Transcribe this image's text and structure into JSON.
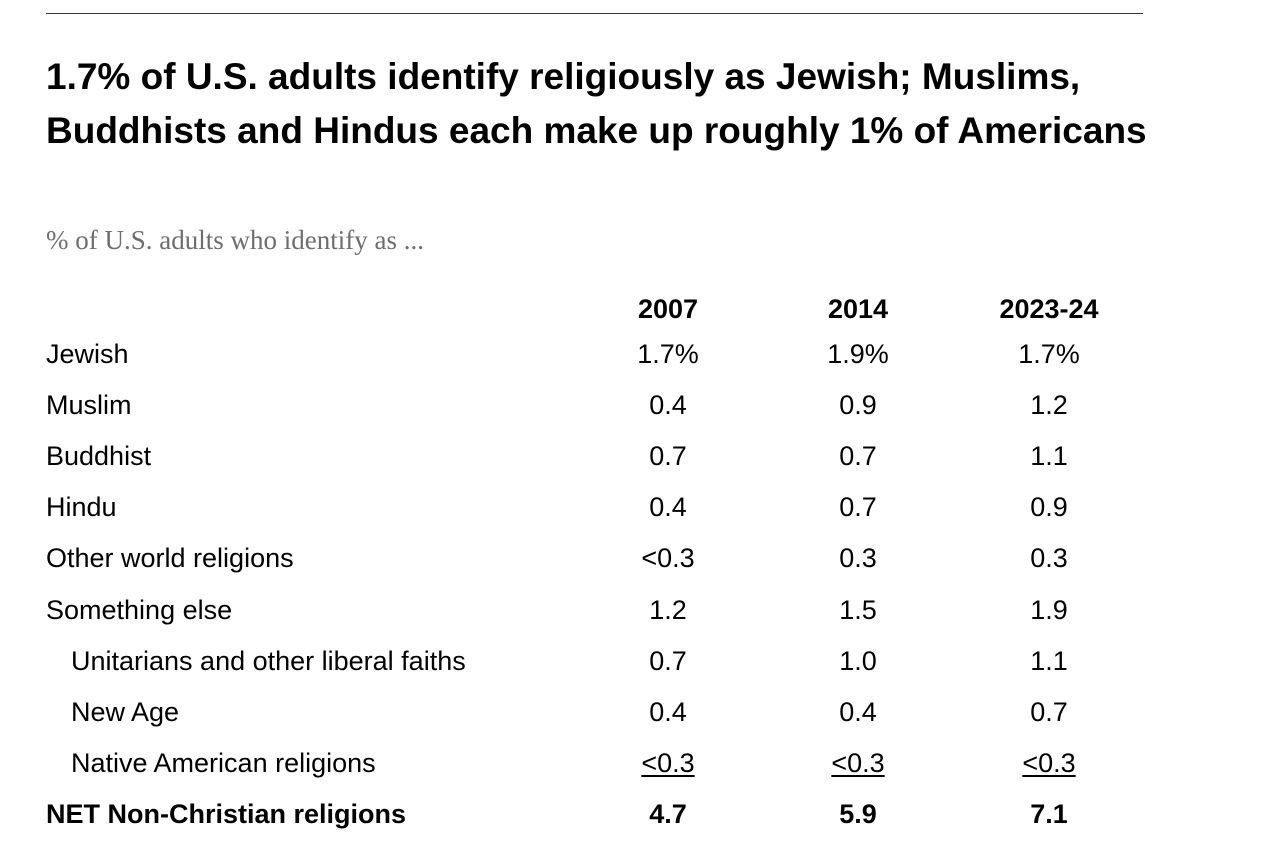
{
  "title": "1.7% of U.S. adults identify religiously as Jewish; Muslims, Buddhists and Hindus each make up roughly 1% of Americans",
  "subtitle": "% of U.S. adults who identify as ...",
  "chart_data": {
    "type": "table",
    "title": "1.7% of U.S. adults identify religiously as Jewish; Muslims, Buddhists and Hindus each make up roughly 1% of Americans",
    "subtitle": "% of U.S. adults who identify as ...",
    "columns": [
      "2007",
      "2014",
      "2023-24"
    ],
    "rows": [
      {
        "label": "Jewish",
        "values": [
          "1.7%",
          "1.9%",
          "1.7%"
        ],
        "indent": false,
        "bold": false
      },
      {
        "label": "Muslim",
        "values": [
          "0.4",
          "0.9",
          "1.2"
        ],
        "indent": false,
        "bold": false
      },
      {
        "label": "Buddhist",
        "values": [
          "0.7",
          "0.7",
          "1.1"
        ],
        "indent": false,
        "bold": false
      },
      {
        "label": "Hindu",
        "values": [
          "0.4",
          "0.7",
          "0.9"
        ],
        "indent": false,
        "bold": false
      },
      {
        "label": "Other world religions",
        "values": [
          "<0.3",
          "0.3",
          "0.3"
        ],
        "indent": false,
        "bold": false
      },
      {
        "label": "Something else",
        "values": [
          "1.2",
          "1.5",
          "1.9"
        ],
        "indent": false,
        "bold": false
      },
      {
        "label": "Unitarians and other liberal faiths",
        "values": [
          "0.7",
          "1.0",
          "1.1"
        ],
        "indent": true,
        "bold": false
      },
      {
        "label": "New Age",
        "values": [
          "0.4",
          "0.4",
          "0.7"
        ],
        "indent": true,
        "bold": false
      },
      {
        "label": "Native American religions",
        "values": [
          "<0.3",
          "<0.3",
          "<0.3"
        ],
        "indent": true,
        "bold": false,
        "underlined": true
      },
      {
        "label": "NET Non-Christian religions",
        "values": [
          "4.7",
          "5.9",
          "7.1"
        ],
        "indent": false,
        "bold": true
      }
    ]
  }
}
